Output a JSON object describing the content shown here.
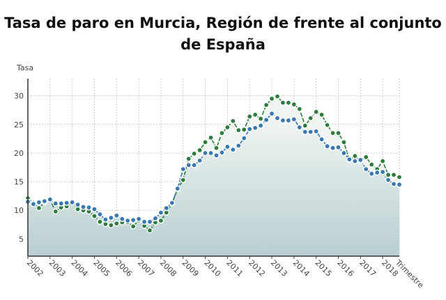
{
  "chart_data": {
    "type": "line",
    "title": "Tasa de paro en Murcia, Región de frente al conjunto de España",
    "ylabel": "Tasa",
    "xlabel": "Trimestre",
    "ylim": [
      2,
      33
    ],
    "yticks": [
      5,
      10,
      15,
      20,
      25,
      30
    ],
    "xticks": [
      "2002",
      "2003",
      "2004",
      "2005",
      "2006",
      "2007",
      "2008",
      "2009",
      "2010",
      "2011",
      "2012",
      "2013",
      "2014",
      "2015",
      "2016",
      "2017",
      "2018"
    ],
    "x_start_year": 2002,
    "points_per_year": 4,
    "grid": true,
    "series": [
      {
        "name": "Murcia, Región de",
        "color": "#2e7d3e",
        "values": [
          12.1,
          11.3,
          10.4,
          11.4,
          11.9,
          9.8,
          10.5,
          10.7,
          11.5,
          10.2,
          10.0,
          9.8,
          9.0,
          8.0,
          7.6,
          7.4,
          7.7,
          7.9,
          7.9,
          7.2,
          8.2,
          7.3,
          6.5,
          7.9,
          8.2,
          9.6,
          11.2,
          13.7,
          15.3,
          19.0,
          19.9,
          20.5,
          21.9,
          22.7,
          20.9,
          23.5,
          24.5,
          25.6,
          24.0,
          24.1,
          26.4,
          26.7,
          26.0,
          28.4,
          29.5,
          29.9,
          28.8,
          28.8,
          28.5,
          27.7,
          24.8,
          26.1,
          27.2,
          26.7,
          24.9,
          23.5,
          23.5,
          21.9,
          18.8,
          19.5,
          18.6,
          19.3,
          18.0,
          17.2,
          18.6,
          16.2,
          16.2,
          15.8
        ]
      },
      {
        "name": "España",
        "color": "#3a78b0",
        "values": [
          11.5,
          11.1,
          11.4,
          11.6,
          11.9,
          11.2,
          11.2,
          11.3,
          11.4,
          11.0,
          10.6,
          10.5,
          10.2,
          9.3,
          8.4,
          8.7,
          9.1,
          8.5,
          8.2,
          8.3,
          8.5,
          8.0,
          8.0,
          8.6,
          9.6,
          10.4,
          11.3,
          13.8,
          17.2,
          17.9,
          17.9,
          18.7,
          20.0,
          20.0,
          19.6,
          20.1,
          21.1,
          20.6,
          21.3,
          22.6,
          24.2,
          24.4,
          24.8,
          25.8,
          26.9,
          26.1,
          25.7,
          25.7,
          25.9,
          24.5,
          23.7,
          23.7,
          23.8,
          22.4,
          21.2,
          20.9,
          21.0,
          20.0,
          18.9,
          18.6,
          18.8,
          17.2,
          16.4,
          16.6,
          16.7,
          15.3,
          14.6,
          14.5
        ]
      }
    ]
  }
}
